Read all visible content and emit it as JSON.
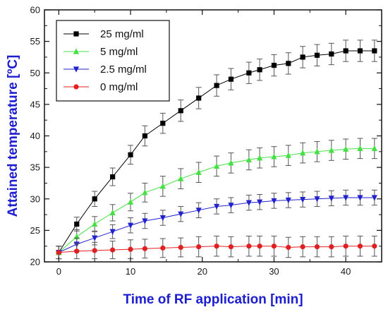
{
  "chart_data": {
    "type": "line",
    "xlabel": "Time of RF application [min]",
    "ylabel": "Attained temperature [ºC]",
    "xlim": [
      -2,
      45
    ],
    "ylim": [
      20,
      60
    ],
    "xticks": [
      0,
      10,
      20,
      30,
      40
    ],
    "yticks": [
      20,
      25,
      30,
      35,
      40,
      45,
      50,
      55,
      60
    ],
    "axis_color": "#1c1cd0",
    "legend_position": "top-left",
    "grid": false,
    "error_bar_color": "#555555",
    "series": [
      {
        "name": "25 mg/ml",
        "color": "#000000",
        "marker": "square",
        "x": [
          0,
          2.5,
          5,
          7.5,
          10,
          12,
          14.5,
          17,
          19.5,
          22,
          24,
          26.5,
          28,
          30,
          32,
          34,
          36,
          38,
          40,
          42,
          44
        ],
        "y": [
          21.5,
          26.0,
          30.0,
          33.5,
          37.0,
          40.0,
          42.0,
          44.0,
          46.0,
          48.0,
          49.0,
          50.0,
          50.5,
          51.2,
          51.5,
          52.5,
          52.8,
          53.0,
          53.5,
          53.5,
          53.5
        ],
        "err": [
          1.0,
          1.1,
          1.2,
          1.4,
          1.5,
          1.6,
          1.6,
          1.7,
          1.7,
          1.7,
          1.7,
          1.7,
          1.7,
          1.7,
          1.7,
          1.7,
          1.7,
          1.7,
          1.7,
          1.7,
          1.7
        ]
      },
      {
        "name": "5 mg/ml",
        "color": "#44e044",
        "marker": "triangle-up",
        "x": [
          0,
          2.5,
          5,
          7.5,
          10,
          12,
          14.5,
          17,
          19.5,
          22,
          24,
          26.5,
          28,
          30,
          32,
          34,
          36,
          38,
          40,
          42,
          44
        ],
        "y": [
          21.5,
          24.0,
          26.0,
          27.8,
          29.5,
          31.0,
          32.0,
          33.2,
          34.2,
          35.2,
          35.7,
          36.2,
          36.5,
          36.7,
          36.9,
          37.3,
          37.5,
          37.7,
          37.9,
          38.0,
          38.0
        ],
        "err": [
          1.0,
          1.1,
          1.2,
          1.3,
          1.4,
          1.5,
          1.6,
          1.6,
          1.6,
          1.6,
          1.6,
          1.6,
          1.6,
          1.6,
          1.6,
          1.6,
          1.6,
          1.6,
          1.6,
          1.6,
          1.6
        ]
      },
      {
        "name": "2.5 mg/ml",
        "color": "#2222cc",
        "marker": "triangle-down",
        "x": [
          0,
          2.5,
          5,
          7.5,
          10,
          12,
          14.5,
          17,
          19.5,
          22,
          24,
          26.5,
          28,
          30,
          32,
          34,
          36,
          38,
          40,
          42,
          44
        ],
        "y": [
          21.5,
          22.8,
          23.8,
          24.8,
          25.8,
          26.5,
          27.0,
          27.6,
          28.2,
          28.8,
          29.0,
          29.4,
          29.5,
          29.7,
          29.8,
          29.9,
          30.0,
          30.1,
          30.2,
          30.2,
          30.2
        ],
        "err": [
          1.0,
          1.0,
          1.1,
          1.1,
          1.2,
          1.2,
          1.2,
          1.2,
          1.2,
          1.2,
          1.2,
          1.2,
          1.2,
          1.2,
          1.2,
          1.2,
          1.2,
          1.2,
          1.2,
          1.2,
          1.2
        ]
      },
      {
        "name": "0 mg/ml",
        "color": "#e02020",
        "marker": "circle",
        "x": [
          0,
          2.5,
          5,
          7.5,
          10,
          12,
          14.5,
          17,
          19.5,
          22,
          24,
          26.5,
          28,
          30,
          32,
          34,
          36,
          38,
          40,
          42,
          44
        ],
        "y": [
          21.5,
          21.7,
          21.8,
          21.9,
          22.0,
          22.1,
          22.2,
          22.3,
          22.4,
          22.5,
          22.4,
          22.5,
          22.5,
          22.5,
          22.3,
          22.4,
          22.4,
          22.4,
          22.5,
          22.5,
          22.5
        ],
        "err": [
          1.0,
          1.2,
          1.3,
          1.4,
          1.5,
          1.5,
          1.5,
          1.5,
          1.6,
          1.6,
          1.6,
          1.6,
          1.6,
          1.6,
          1.6,
          1.6,
          1.6,
          1.6,
          1.6,
          1.6,
          1.6
        ]
      }
    ]
  }
}
